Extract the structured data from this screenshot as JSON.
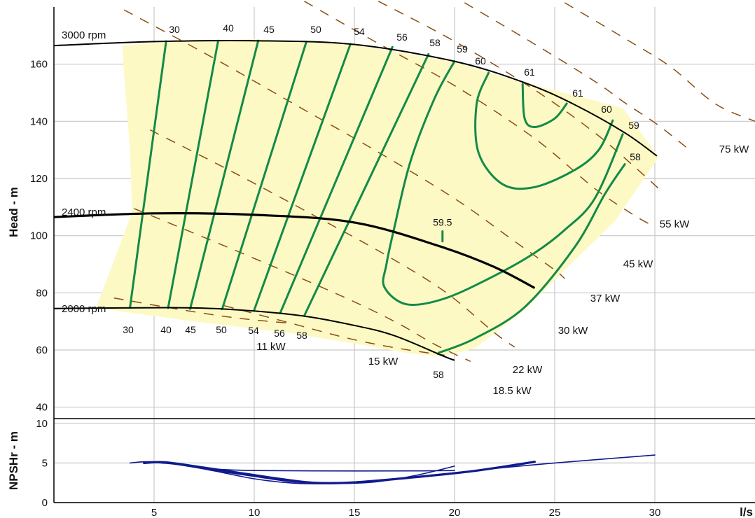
{
  "chart_data": [
    {
      "type": "line",
      "panel": "head",
      "xlim": [
        0,
        35
      ],
      "ylim": [
        36,
        180
      ],
      "ylabel": "Head - m",
      "xticks": [
        5,
        10,
        15,
        20,
        25,
        30
      ],
      "yticks": [
        40,
        60,
        80,
        100,
        120,
        140,
        160
      ],
      "grid": true,
      "color_region": "#fdf9c4",
      "color_efficiency": "#138a48",
      "color_power": "#8a4e16",
      "operating_region": [
        [
          3.4,
          166.5
        ],
        [
          3.8,
          129.5
        ],
        [
          3.9,
          108
        ],
        [
          2.1,
          74.7
        ],
        [
          7,
          70
        ],
        [
          12,
          65.7
        ],
        [
          15.4,
          61.8
        ],
        [
          17.6,
          59
        ],
        [
          19.3,
          57.7
        ],
        [
          21,
          60.5
        ],
        [
          23.5,
          73.9
        ],
        [
          25.5,
          88
        ],
        [
          28,
          105
        ],
        [
          30.2,
          127.5
        ],
        [
          28.4,
          144.7
        ],
        [
          23.5,
          153.5
        ],
        [
          20,
          160.8
        ],
        [
          15,
          166.9
        ],
        [
          10,
          168.8
        ],
        [
          5.5,
          167.8
        ]
      ],
      "speed_curves": [
        {
          "name": "3000 rpm",
          "width": 2,
          "points": [
            [
              0,
              166.5
            ],
            [
              5,
              167.9
            ],
            [
              10,
              168.2
            ],
            [
              15,
              166.9
            ],
            [
              20,
              161
            ],
            [
              23.5,
              153.5
            ],
            [
              26,
              145.8
            ],
            [
              28.5,
              136
            ],
            [
              30.1,
              127.9
            ]
          ]
        },
        {
          "name": "2400 rpm",
          "width": 3.2,
          "points": [
            [
              0,
              106.5
            ],
            [
              5,
              107.8
            ],
            [
              10,
              107.3
            ],
            [
              15,
              104.6
            ],
            [
              19.3,
              96.2
            ],
            [
              22,
              89
            ],
            [
              24,
              81.7
            ]
          ]
        },
        {
          "name": "2000 rpm",
          "width": 2,
          "points": [
            [
              0,
              74.5
            ],
            [
              5,
              74.8
            ],
            [
              8,
              74.5
            ],
            [
              12,
              72.3
            ],
            [
              15,
              68.6
            ],
            [
              17,
              65
            ],
            [
              19.4,
              58
            ],
            [
              20,
              56.4
            ]
          ]
        }
      ],
      "efficiency_curves": [
        {
          "label_top": "30",
          "label_bottom": "30",
          "points": [
            [
              5.6,
              168
            ],
            [
              3.8,
              75
            ]
          ]
        },
        {
          "label_top": "40",
          "label_bottom": "40",
          "points": [
            [
              8.2,
              168.2
            ],
            [
              5.7,
              74.7
            ]
          ]
        },
        {
          "label_top": "45",
          "label_bottom": "45",
          "points": [
            [
              10.2,
              168.2
            ],
            [
              6.8,
              74.4
            ]
          ]
        },
        {
          "label_top": "50",
          "label_bottom": "50",
          "points": [
            [
              12.6,
              167.8
            ],
            [
              8.4,
              74.3
            ]
          ]
        },
        {
          "label_top": "54",
          "label_bottom": "54",
          "points": [
            [
              14.8,
              167
            ],
            [
              10,
              74
            ]
          ]
        },
        {
          "label_top": "56",
          "label_bottom": "56",
          "points": [
            [
              16.9,
              166
            ],
            [
              11.3,
              73
            ]
          ]
        },
        {
          "label_top": "58",
          "label_bottom": "58",
          "points": [
            [
              18.7,
              163.5
            ],
            [
              12.5,
              72
            ]
          ]
        },
        {
          "label_top": "59",
          "label_bottom": "",
          "points": [
            [
              20,
              161
            ],
            [
              19,
              148
            ],
            [
              17.8,
              126
            ],
            [
              17,
              103
            ],
            [
              16.6,
              90
            ],
            [
              16.5,
              82
            ],
            [
              17.6,
              76
            ],
            [
              19.5,
              78
            ],
            [
              22,
              86
            ],
            [
              24,
              94
            ],
            [
              25.5,
              102
            ],
            [
              27,
              113
            ],
            [
              28.4,
              135.5
            ]
          ]
        },
        {
          "label_top": "60",
          "label_bottom": "",
          "points": [
            [
              21.7,
              157
            ],
            [
              21.1,
              146
            ],
            [
              21.2,
              129
            ],
            [
              22.4,
              118
            ],
            [
              24,
              117
            ],
            [
              26,
              123
            ],
            [
              27.2,
              130
            ],
            [
              27.9,
              140.3
            ]
          ]
        },
        {
          "label_top": "61",
          "label_bottom": "61",
          "points": [
            [
              23.4,
              153
            ],
            [
              23.5,
              141
            ],
            [
              24,
              138
            ],
            [
              25,
              141
            ],
            [
              25.6,
              146.2
            ]
          ]
        },
        {
          "label_top": "58",
          "label_bottom": "58",
          "points": [
            [
              19.2,
              59
            ],
            [
              21,
              64
            ],
            [
              23.5,
              75
            ],
            [
              26,
              96
            ],
            [
              27.5,
              114.5
            ],
            [
              28.5,
              125
            ]
          ]
        }
      ],
      "power_curves": [
        {
          "label": "11 kW",
          "points": [
            [
              3,
              78.2
            ],
            [
              6,
              74.5
            ],
            [
              9,
              71.3
            ],
            [
              12,
              69.2
            ]
          ]
        },
        {
          "label": "15 kW",
          "points": [
            [
              8.5,
              75.5
            ],
            [
              11.5,
              70
            ],
            [
              14.5,
              64.4
            ],
            [
              17,
              60.8
            ],
            [
              19.5,
              58.2
            ]
          ]
        },
        {
          "label": "18.5 kW",
          "points": [
            [
              4,
              109.5
            ],
            [
              9,
              95
            ],
            [
              14,
              80
            ],
            [
              17,
              70
            ],
            [
              19,
              62
            ],
            [
              20.8,
              56
            ]
          ]
        },
        {
          "label": "22 kW",
          "points": [
            [
              4.8,
              137
            ],
            [
              9,
              122
            ],
            [
              13,
              107
            ],
            [
              16.5,
              93.5
            ],
            [
              19.5,
              80.5
            ],
            [
              22,
              66
            ],
            [
              23,
              61
            ]
          ]
        },
        {
          "label": "30 kW",
          "points": [
            [
              3.5,
              179
            ],
            [
              8,
              162
            ],
            [
              12,
              146
            ],
            [
              16,
              130
            ],
            [
              20,
              113
            ],
            [
              23,
              98
            ],
            [
              25,
              88
            ],
            [
              25.5,
              85
            ]
          ]
        },
        {
          "label": "37 kW",
          "points": [
            [
              12.5,
              182
            ],
            [
              16,
              168
            ],
            [
              20,
              152.5
            ],
            [
              24,
              134
            ],
            [
              27,
              116.5
            ],
            [
              29,
              107
            ],
            [
              29.9,
              103.5
            ]
          ]
        },
        {
          "label": "45 kW",
          "points": [
            [
              16.2,
              182
            ],
            [
              20,
              168
            ],
            [
              24,
              151
            ],
            [
              27,
              136
            ],
            [
              29,
              124
            ],
            [
              30.3,
              115.8
            ]
          ]
        },
        {
          "label": "55 kW",
          "points": [
            [
              20.5,
              181.5
            ],
            [
              24,
              167
            ],
            [
              27,
              154
            ],
            [
              28.5,
              146.5
            ],
            [
              30.1,
              139
            ],
            [
              31.7,
              130.2
            ]
          ]
        },
        {
          "label": "75 kW",
          "points": [
            [
              25.5,
              181.5
            ],
            [
              28.5,
              169
            ],
            [
              30.8,
              159
            ],
            [
              33,
              146.2
            ],
            [
              35,
              140
            ]
          ]
        }
      ],
      "annotations": [
        {
          "text": "59.5",
          "points": [
            [
              19.4,
              101.5
            ],
            [
              19.4,
              98
            ]
          ]
        }
      ]
    },
    {
      "type": "line",
      "panel": "npsh",
      "xlim": [
        0,
        35
      ],
      "ylim": [
        0,
        10.6
      ],
      "ylabel": "NPSHr - m",
      "xlabel": "l/s",
      "xticks": [
        5,
        10,
        15,
        20,
        25,
        30
      ],
      "yticks": [
        0,
        5,
        10
      ],
      "grid": true,
      "color": "#101a8e",
      "series": [
        {
          "name": "",
          "width": 1.6,
          "points": [
            [
              3.8,
              5
            ],
            [
              4.5,
              5.15
            ],
            [
              5.5,
              5.1
            ],
            [
              6.5,
              4.75
            ],
            [
              8,
              4.25
            ],
            [
              10,
              4.05
            ],
            [
              13,
              4
            ],
            [
              18,
              4
            ],
            [
              20,
              4.05
            ]
          ]
        },
        {
          "name": "",
          "width": 1.6,
          "points": [
            [
              4.5,
              5.1
            ],
            [
              6,
              4.85
            ],
            [
              8,
              4.05
            ],
            [
              10,
              3.3
            ],
            [
              12,
              2.6
            ],
            [
              14,
              2.4
            ],
            [
              16,
              2.6
            ],
            [
              18,
              3.4
            ],
            [
              20,
              4.6
            ]
          ]
        },
        {
          "name": "",
          "width": 3.2,
          "points": [
            [
              4.5,
              5
            ],
            [
              5.5,
              5.1
            ],
            [
              7,
              4.6
            ],
            [
              9,
              3.85
            ],
            [
              11,
              3.1
            ],
            [
              13,
              2.5
            ],
            [
              15,
              2.55
            ],
            [
              18,
              3.2
            ],
            [
              21,
              4
            ],
            [
              24,
              5.15
            ]
          ]
        },
        {
          "name": "",
          "width": 1.6,
          "points": [
            [
              4.8,
              5.05
            ],
            [
              6,
              4.9
            ],
            [
              8,
              4
            ],
            [
              10,
              3
            ],
            [
              12,
              2.45
            ],
            [
              14,
              2.4
            ],
            [
              16,
              2.7
            ],
            [
              19,
              3.5
            ],
            [
              22,
              4.3
            ],
            [
              25,
              5
            ],
            [
              30,
              6
            ]
          ]
        }
      ]
    }
  ]
}
